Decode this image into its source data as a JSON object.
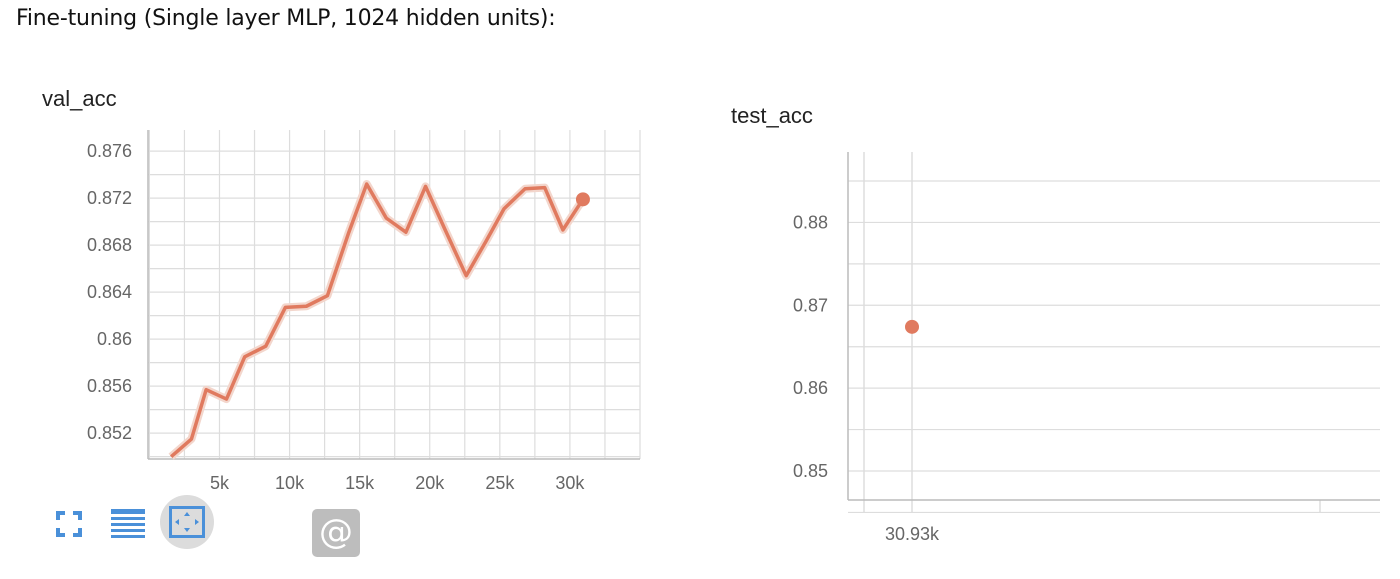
{
  "page": {
    "heading": "Fine-tuning (Single layer MLP, 1024 hidden units):"
  },
  "toolbar": {
    "fullscreen_icon": "fullscreen-icon",
    "list_icon": "list-icon",
    "fit_icon": "fit-to-data-icon",
    "at_label": "@"
  },
  "colors": {
    "line": "#e07a5f",
    "grid": "#dddddd",
    "tick_text": "#666666",
    "icon_blue": "#4a90d9"
  },
  "chart_data": [
    {
      "type": "line",
      "title": "val_acc",
      "xlabel": "",
      "ylabel": "",
      "x_ticks": [
        "5k",
        "10k",
        "15k",
        "20k",
        "25k",
        "30k"
      ],
      "y_ticks": [
        "0.876",
        "0.872",
        "0.868",
        "0.864",
        "0.86",
        "0.856",
        "0.852"
      ],
      "xlim": [
        -100,
        35000
      ],
      "ylim": [
        0.8498,
        0.8778
      ],
      "grid": true,
      "series": [
        {
          "x": [
            1550,
            3000,
            4050,
            5500,
            6800,
            8300,
            9700,
            11200,
            12700,
            14200,
            15500,
            16900,
            18300,
            19700,
            21100,
            22600,
            24000,
            25300,
            26800,
            28200,
            29500,
            30930
          ],
          "y": [
            0.85,
            0.8515,
            0.8557,
            0.8549,
            0.8585,
            0.8594,
            0.8627,
            0.8628,
            0.8637,
            0.869,
            0.8732,
            0.8703,
            0.8691,
            0.873,
            0.8693,
            0.8654,
            0.8683,
            0.8711,
            0.8728,
            0.8729,
            0.8693,
            0.8719
          ]
        }
      ]
    },
    {
      "type": "scatter",
      "title": "test_acc",
      "xlabel": "",
      "ylabel": "",
      "x_ticks": [
        "30.93k"
      ],
      "y_ticks": [
        "0.88",
        "0.87",
        "0.86",
        "0.85"
      ],
      "ylim": [
        0.8465,
        0.8885
      ],
      "grid": true,
      "series": [
        {
          "x": [
            30930
          ],
          "y": [
            0.8674
          ]
        }
      ]
    }
  ]
}
